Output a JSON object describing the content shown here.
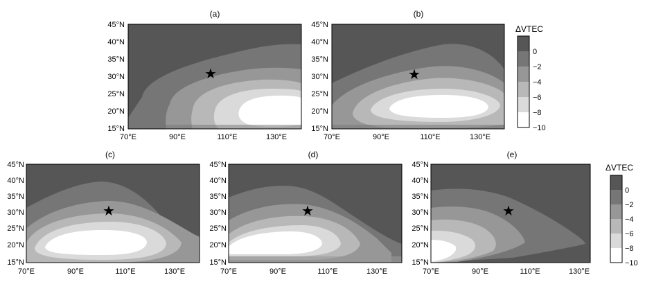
{
  "figure": {
    "panels": [
      {
        "label": "(a)",
        "x_ticks": [
          "70°E",
          "90°E",
          "110°E",
          "130°E"
        ],
        "y_ticks": [
          "45°N",
          "40°N",
          "35°N",
          "30°N",
          "25°N",
          "20°N",
          "15°N"
        ]
      },
      {
        "label": "(b)",
        "x_ticks": [
          "70°E",
          "90°E",
          "110°E",
          "130°E"
        ],
        "y_ticks": [
          "45°N",
          "40°N",
          "35°N",
          "30°N",
          "25°N",
          "20°N",
          "15°N"
        ]
      },
      {
        "label": "(c)",
        "x_ticks": [
          "70°E",
          "90°E",
          "110°E",
          "130°E"
        ],
        "y_ticks": [
          "45°N",
          "40°N",
          "35°N",
          "30°N",
          "25°N",
          "20°N",
          "15°N"
        ]
      },
      {
        "label": "(d)",
        "x_ticks": [
          "70°E",
          "90°E",
          "110°E",
          "130°E"
        ],
        "y_ticks": [
          "45°N",
          "40°N",
          "35°N",
          "30°N",
          "25°N",
          "20°N",
          "15°N"
        ]
      },
      {
        "label": "(e)",
        "x_ticks": [
          "70°E",
          "90°E",
          "110°E",
          "130°E"
        ],
        "y_ticks": [
          "45°N",
          "40°N",
          "35°N",
          "30°N",
          "25°N",
          "20°N",
          "15°N"
        ]
      }
    ],
    "colorbar": {
      "title": "ΔVTEC",
      "tick_labels": [
        "0",
        "−2",
        "−4",
        "−6",
        "−8",
        "−10"
      ],
      "colors": [
        "#565656",
        "#767676",
        "#979797",
        "#b8b8b8",
        "#dadada",
        "#ffffff"
      ]
    },
    "epicenter_marker": "star-icon"
  }
}
